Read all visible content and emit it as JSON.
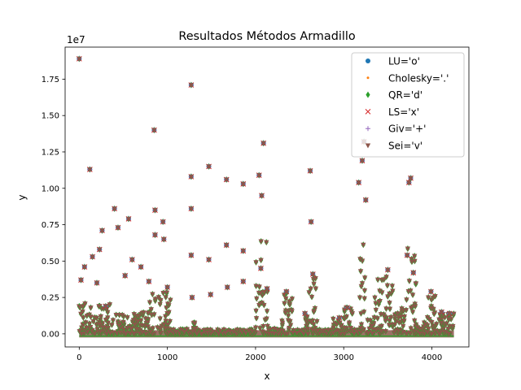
{
  "chart_data": {
    "type": "scatter",
    "title": "Resultados Métodos Armadillo",
    "xlabel": "x",
    "ylabel": "y",
    "offset_label": "1e7",
    "xlim": [
      -160,
      4420
    ],
    "ylim": [
      -900000,
      19700000
    ],
    "xticks": [
      0,
      1000,
      2000,
      3000,
      4000
    ],
    "xtick_labels": [
      "0",
      "1000",
      "2000",
      "3000",
      "4000"
    ],
    "yticks": [
      0,
      2500000,
      5000000,
      7500000,
      10000000,
      12500000,
      15000000,
      17500000
    ],
    "ytick_labels": [
      "0.00",
      "0.25",
      "0.50",
      "0.75",
      "1.00",
      "1.25",
      "1.50",
      "1.75"
    ],
    "grid": false,
    "legend_position": "top-right",
    "n_points": 4250,
    "series": [
      {
        "name": "LU='o'",
        "marker": "o",
        "color": "#1f77b4"
      },
      {
        "name": "Cholesky='.'",
        "marker": ".",
        "color": "#ff7f0e"
      },
      {
        "name": "QR='d'",
        "marker": "d",
        "color": "#2ca02c"
      },
      {
        "name": "LS='x'",
        "marker": "x",
        "color": "#d62728"
      },
      {
        "name": "Giv='+'",
        "marker": "+",
        "color": "#9467bd"
      },
      {
        "name": "Sei='v'",
        "marker": "v",
        "color": "#8c564b"
      }
    ],
    "points": [
      [
        0,
        18900000
      ],
      [
        120,
        11300000
      ],
      [
        260,
        7100000
      ],
      [
        400,
        8600000
      ],
      [
        440,
        7300000
      ],
      [
        560,
        7900000
      ],
      [
        850,
        14000000
      ],
      [
        950,
        7700000
      ],
      [
        1270,
        17100000
      ],
      [
        1270,
        10800000
      ],
      [
        1270,
        8600000
      ],
      [
        1470,
        11500000
      ],
      [
        1670,
        10600000
      ],
      [
        1860,
        10300000
      ],
      [
        2040,
        10900000
      ],
      [
        2090,
        13100000
      ],
      [
        2070,
        9500000
      ],
      [
        2620,
        11200000
      ],
      [
        2630,
        7700000
      ],
      [
        3230,
        13200000
      ],
      [
        3210,
        11900000
      ],
      [
        3170,
        10400000
      ],
      [
        3740,
        10400000
      ],
      [
        3760,
        10700000
      ],
      [
        3250,
        9200000
      ],
      [
        20,
        3700000
      ],
      [
        60,
        4600000
      ],
      [
        150,
        5300000
      ],
      [
        200,
        3500000
      ],
      [
        230,
        5800000
      ],
      [
        300,
        1900000
      ],
      [
        520,
        4000000
      ],
      [
        600,
        5100000
      ],
      [
        700,
        4600000
      ],
      [
        790,
        3600000
      ],
      [
        860,
        8500000
      ],
      [
        860,
        6800000
      ],
      [
        960,
        6500000
      ],
      [
        1000,
        3200000
      ],
      [
        1270,
        5400000
      ],
      [
        1280,
        2500000
      ],
      [
        1470,
        5100000
      ],
      [
        1490,
        2700000
      ],
      [
        1670,
        6100000
      ],
      [
        1680,
        3200000
      ],
      [
        1860,
        5700000
      ],
      [
        1860,
        3600000
      ],
      [
        2060,
        4500000
      ],
      [
        2130,
        3100000
      ],
      [
        2350,
        2900000
      ],
      [
        2560,
        1400000
      ],
      [
        2650,
        4100000
      ],
      [
        2950,
        1100000
      ],
      [
        3040,
        1800000
      ],
      [
        3500,
        4400000
      ],
      [
        3720,
        5400000
      ],
      [
        3790,
        4200000
      ],
      [
        3990,
        2900000
      ],
      [
        4110,
        1500000
      ],
      [
        4200,
        1400000
      ]
    ],
    "clusters": [
      [
        0,
        350,
        2200000
      ],
      [
        350,
        800,
        1500000
      ],
      [
        800,
        1050,
        3000000
      ],
      [
        1050,
        1250,
        400000
      ],
      [
        1250,
        1330,
        800000
      ],
      [
        1330,
        2000,
        300000
      ],
      [
        2000,
        2150,
        6800000
      ],
      [
        2150,
        2300,
        400000
      ],
      [
        2300,
        2420,
        2900000
      ],
      [
        2420,
        2560,
        300000
      ],
      [
        2560,
        2620,
        1400000
      ],
      [
        2600,
        2700,
        3900000
      ],
      [
        2700,
        2880,
        300000
      ],
      [
        2880,
        3000,
        1100000
      ],
      [
        3000,
        3100,
        1900000
      ],
      [
        3100,
        3180,
        300000
      ],
      [
        3180,
        3260,
        7000000
      ],
      [
        3260,
        3350,
        1200000
      ],
      [
        3350,
        3560,
        4000000
      ],
      [
        3560,
        3700,
        1800000
      ],
      [
        3700,
        3820,
        6300000
      ],
      [
        3820,
        3950,
        800000
      ],
      [
        3950,
        4050,
        2800000
      ],
      [
        4050,
        4250,
        1600000
      ]
    ]
  }
}
